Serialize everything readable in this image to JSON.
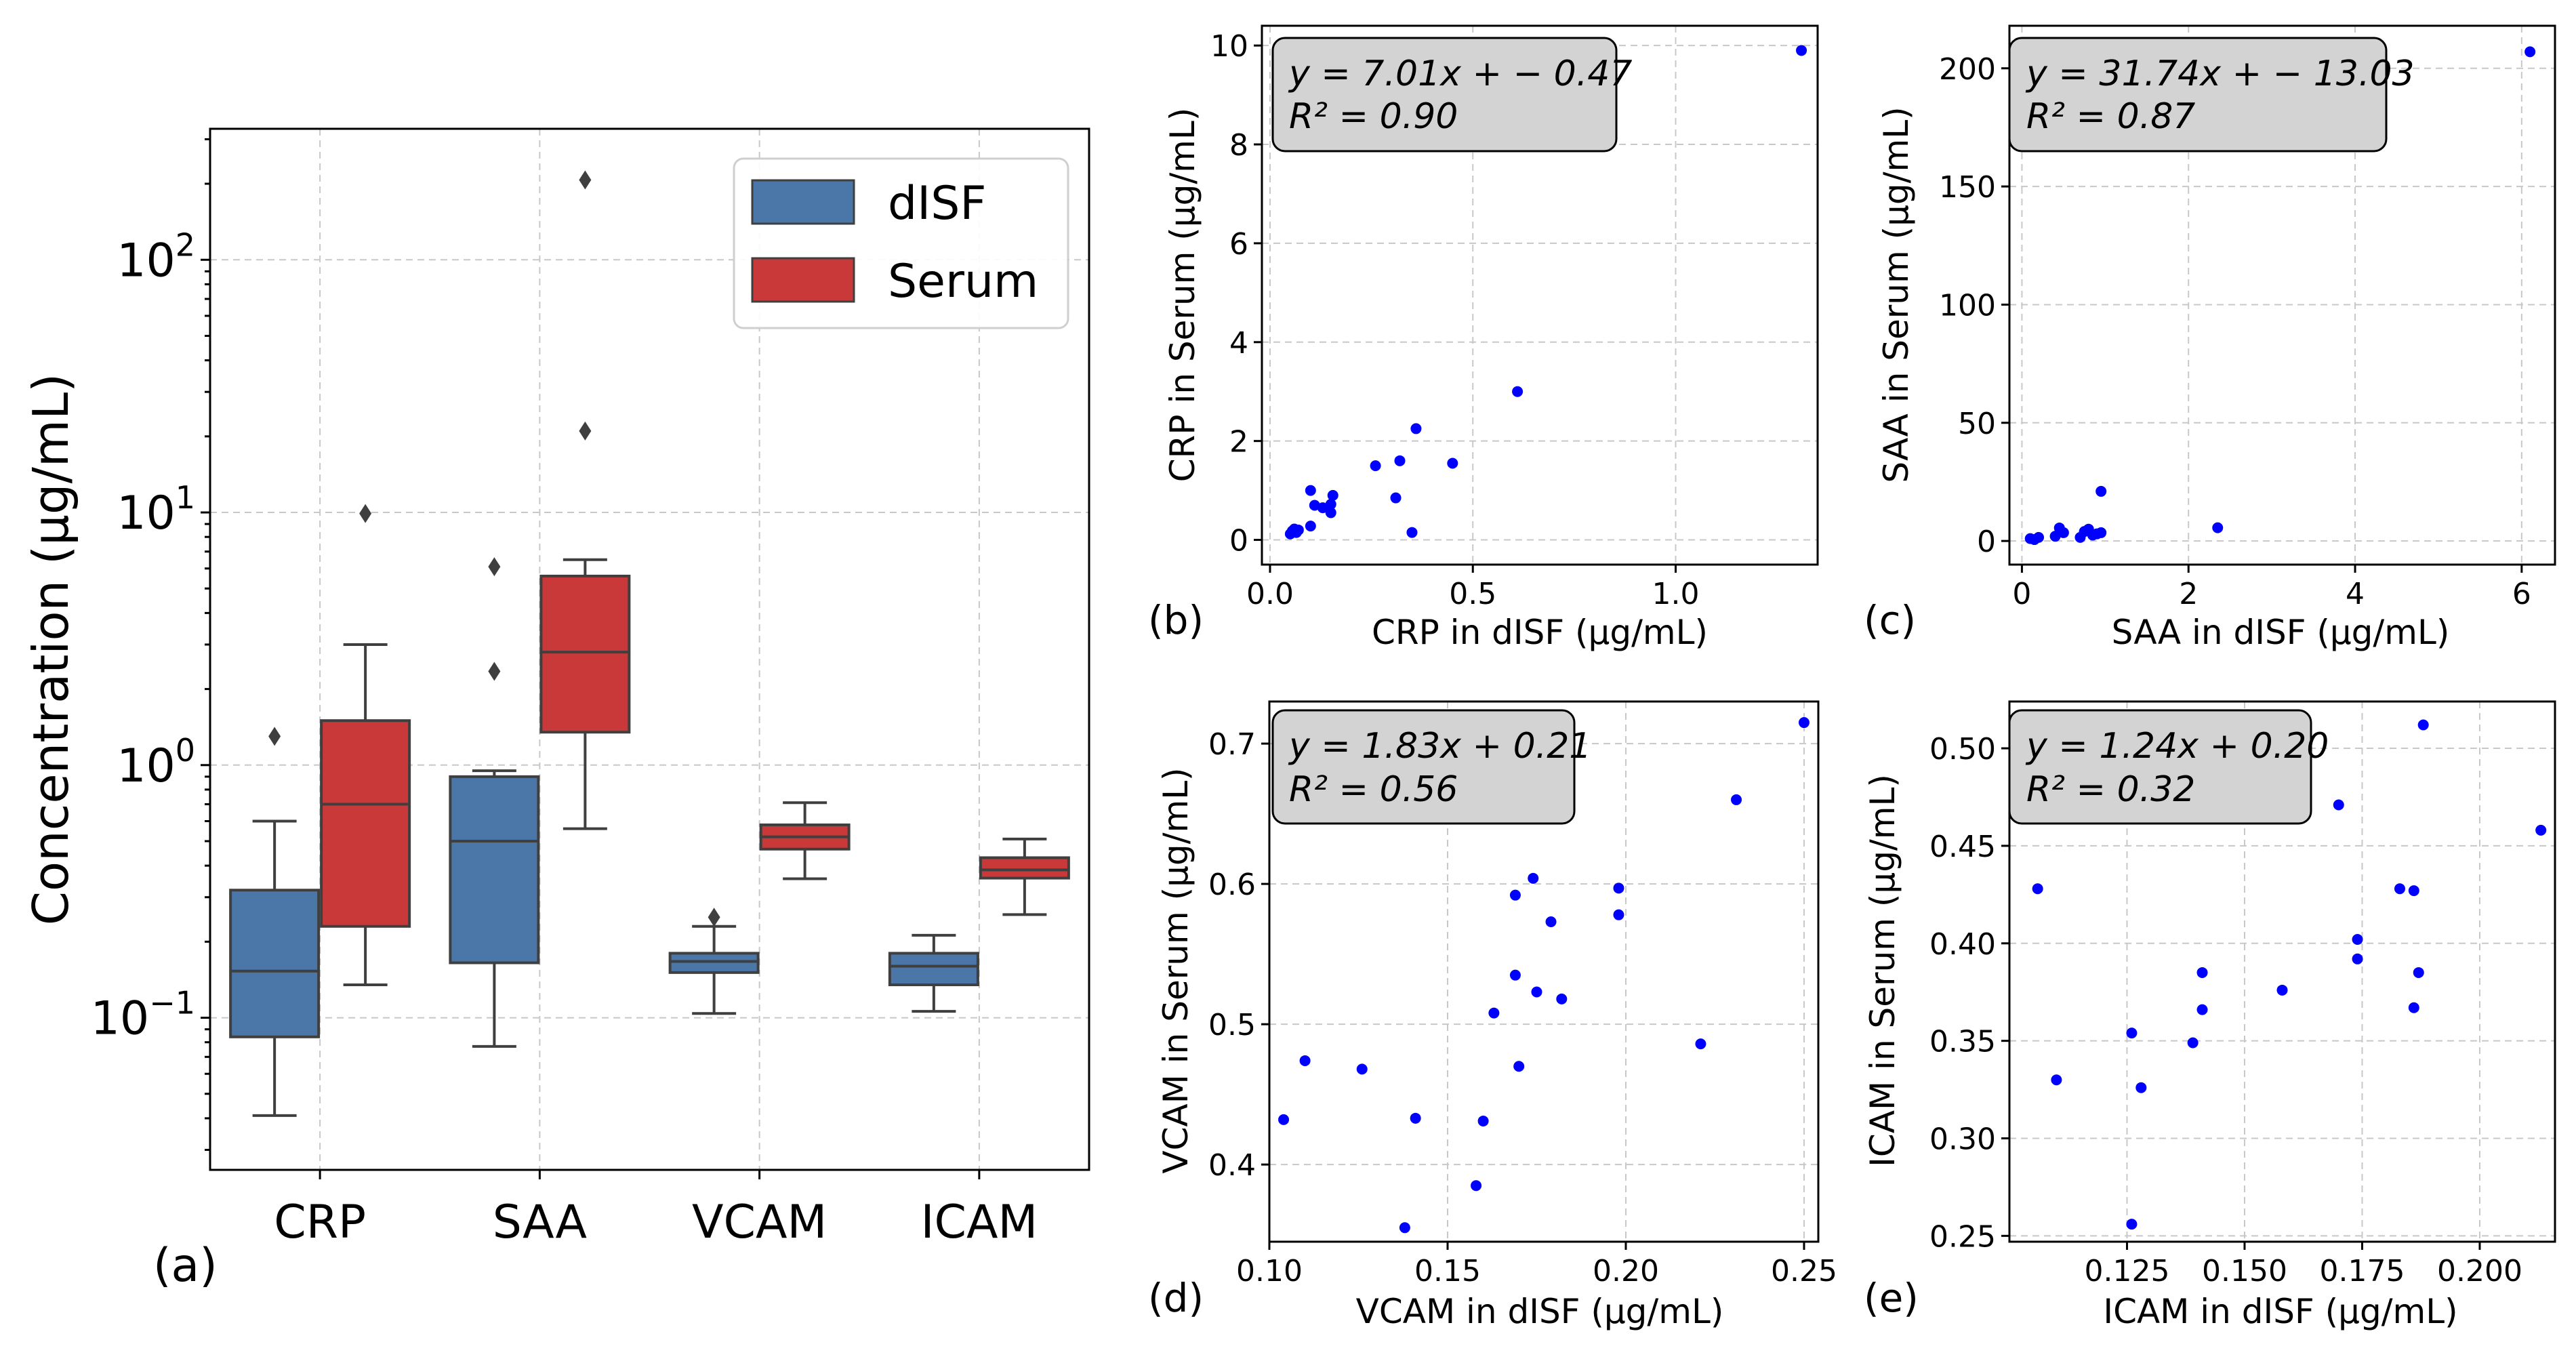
{
  "chart_data": [
    {
      "panel": "(a)",
      "type": "boxplot",
      "yscale": "log",
      "ylim": [
        0.025,
        330
      ],
      "ylabel": "Concentration (µg/mL)",
      "categories": [
        "CRP",
        "SAA",
        "VCAM",
        "ICAM"
      ],
      "yticks": [
        {
          "value": 0.1,
          "base": "10",
          "exp": "−1"
        },
        {
          "value": 1,
          "base": "10",
          "exp": "0"
        },
        {
          "value": 10,
          "base": "10",
          "exp": "1"
        },
        {
          "value": 100,
          "base": "10",
          "exp": "2"
        }
      ],
      "legend": {
        "position": "top-right",
        "entries": [
          {
            "name": "dISF",
            "color": "#4a77a8"
          },
          {
            "name": "Serum",
            "color": "#c9393a"
          }
        ]
      },
      "series": [
        {
          "name": "dISF",
          "color": "#4a77a8",
          "boxes": [
            {
              "category": "CRP",
              "whislo": 0.041,
              "q1": 0.084,
              "med": 0.153,
              "q3": 0.32,
              "whishi": 0.6,
              "fliers": [
                1.3
              ]
            },
            {
              "category": "SAA",
              "whislo": 0.077,
              "q1": 0.165,
              "med": 0.5,
              "q3": 0.9,
              "whishi": 0.95,
              "fliers": [
                2.35,
                6.1
              ]
            },
            {
              "category": "VCAM",
              "whislo": 0.104,
              "q1": 0.151,
              "med": 0.167,
              "q3": 0.18,
              "whishi": 0.23,
              "fliers": [
                0.25
              ]
            },
            {
              "category": "ICAM",
              "whislo": 0.106,
              "q1": 0.135,
              "med": 0.16,
              "q3": 0.18,
              "whishi": 0.212,
              "fliers": []
            }
          ]
        },
        {
          "name": "Serum",
          "color": "#c9393a",
          "boxes": [
            {
              "category": "CRP",
              "whislo": 0.135,
              "q1": 0.23,
              "med": 0.7,
              "q3": 1.5,
              "whishi": 3.0,
              "fliers": [
                9.9
              ]
            },
            {
              "category": "SAA",
              "whislo": 0.56,
              "q1": 1.35,
              "med": 2.8,
              "q3": 5.6,
              "whishi": 6.5,
              "fliers": [
                21.0,
                207.0
              ]
            },
            {
              "category": "VCAM",
              "whislo": 0.355,
              "q1": 0.465,
              "med": 0.52,
              "q3": 0.58,
              "whishi": 0.71,
              "fliers": []
            },
            {
              "category": "ICAM",
              "whislo": 0.256,
              "q1": 0.357,
              "med": 0.385,
              "q3": 0.43,
              "whishi": 0.51,
              "fliers": []
            }
          ]
        }
      ]
    },
    {
      "panel": "(b)",
      "type": "scatter",
      "xlabel": "CRP in dISF (µg/mL)",
      "ylabel": "CRP in Serum (µg/mL)",
      "xlim": [
        -0.02,
        1.35
      ],
      "ylim": [
        -0.5,
        10.4
      ],
      "xticks": [
        0.0,
        0.5,
        1.0
      ],
      "xticklabels": [
        "0.0",
        "0.5",
        "1.0"
      ],
      "yticks": [
        0,
        2,
        4,
        6,
        8,
        10
      ],
      "yticklabels": [
        "0",
        "2",
        "4",
        "6",
        "8",
        "10"
      ],
      "equation": "y = 7.01x + − 0.47",
      "r2": "R² = 0.90",
      "color": "#0000ff",
      "points": [
        [
          0.05,
          0.12
        ],
        [
          0.055,
          0.18
        ],
        [
          0.06,
          0.22
        ],
        [
          0.065,
          0.15
        ],
        [
          0.07,
          0.2
        ],
        [
          0.1,
          0.28
        ],
        [
          0.1,
          1.0
        ],
        [
          0.11,
          0.7
        ],
        [
          0.13,
          0.65
        ],
        [
          0.15,
          0.55
        ],
        [
          0.15,
          0.72
        ],
        [
          0.155,
          0.9
        ],
        [
          0.26,
          1.5
        ],
        [
          0.31,
          0.85
        ],
        [
          0.32,
          1.6
        ],
        [
          0.35,
          0.15
        ],
        [
          0.36,
          2.25
        ],
        [
          0.45,
          1.55
        ],
        [
          0.61,
          3.0
        ],
        [
          1.31,
          9.9
        ]
      ]
    },
    {
      "panel": "(c)",
      "type": "scatter",
      "xlabel": "SAA in dISF (µg/mL)",
      "ylabel": "SAA in Serum (µg/mL)",
      "xlim": [
        -0.15,
        6.4
      ],
      "ylim": [
        -10,
        218
      ],
      "xticks": [
        0,
        2,
        4,
        6
      ],
      "xticklabels": [
        "0",
        "2",
        "4",
        "6"
      ],
      "yticks": [
        0,
        50,
        100,
        150,
        200
      ],
      "yticklabels": [
        "0",
        "50",
        "100",
        "150",
        "200"
      ],
      "equation": "y = 31.74x + − 13.03",
      "r2": "R² = 0.87",
      "color": "#0000ff",
      "points": [
        [
          0.1,
          1.0
        ],
        [
          0.15,
          0.6
        ],
        [
          0.2,
          1.5
        ],
        [
          0.4,
          2.0
        ],
        [
          0.45,
          5.5
        ],
        [
          0.5,
          3.5
        ],
        [
          0.7,
          1.5
        ],
        [
          0.75,
          4.0
        ],
        [
          0.8,
          5.0
        ],
        [
          0.85,
          2.5
        ],
        [
          0.9,
          3.0
        ],
        [
          0.95,
          3.5
        ],
        [
          0.95,
          21.0
        ],
        [
          2.35,
          5.6
        ],
        [
          6.1,
          207.0
        ]
      ]
    },
    {
      "panel": "(d)",
      "type": "scatter",
      "xlabel": "VCAM in dISF (µg/mL)",
      "ylabel": "VCAM in Serum (µg/mL)",
      "xlim": [
        0.1,
        0.254
      ],
      "ylim": [
        0.345,
        0.73
      ],
      "xticks": [
        0.1,
        0.15,
        0.2,
        0.25
      ],
      "xticklabels": [
        "0.10",
        "0.15",
        "0.20",
        "0.25"
      ],
      "yticks": [
        0.4,
        0.5,
        0.6,
        0.7
      ],
      "yticklabels": [
        "0.4",
        "0.5",
        "0.6",
        "0.7"
      ],
      "equation": "y = 1.83x + 0.21",
      "r2": "R² = 0.56",
      "color": "#0000ff",
      "points": [
        [
          0.104,
          0.432
        ],
        [
          0.11,
          0.474
        ],
        [
          0.126,
          0.468
        ],
        [
          0.138,
          0.355
        ],
        [
          0.141,
          0.433
        ],
        [
          0.158,
          0.385
        ],
        [
          0.16,
          0.431
        ],
        [
          0.163,
          0.508
        ],
        [
          0.169,
          0.592
        ],
        [
          0.169,
          0.535
        ],
        [
          0.17,
          0.47
        ],
        [
          0.174,
          0.604
        ],
        [
          0.175,
          0.523
        ],
        [
          0.179,
          0.573
        ],
        [
          0.182,
          0.518
        ],
        [
          0.198,
          0.597
        ],
        [
          0.198,
          0.578
        ],
        [
          0.221,
          0.486
        ],
        [
          0.231,
          0.66
        ],
        [
          0.25,
          0.715
        ]
      ]
    },
    {
      "panel": "(e)",
      "type": "scatter",
      "xlabel": "ICAM in dISF (µg/mL)",
      "ylabel": "ICAM in Serum (µg/mL)",
      "xlim": [
        0.1,
        0.216
      ],
      "ylim": [
        0.247,
        0.524
      ],
      "xticks": [
        0.125,
        0.15,
        0.175,
        0.2
      ],
      "xticklabels": [
        "0.125",
        "0.150",
        "0.175",
        "0.200"
      ],
      "yticks": [
        0.25,
        0.3,
        0.35,
        0.4,
        0.45,
        0.5
      ],
      "yticklabels": [
        "0.25",
        "0.30",
        "0.35",
        "0.40",
        "0.45",
        "0.50"
      ],
      "equation": "y = 1.24x + 0.20",
      "r2": "R² = 0.32",
      "color": "#0000ff",
      "points": [
        [
          0.106,
          0.428
        ],
        [
          0.11,
          0.33
        ],
        [
          0.126,
          0.354
        ],
        [
          0.126,
          0.256
        ],
        [
          0.128,
          0.326
        ],
        [
          0.139,
          0.349
        ],
        [
          0.141,
          0.385
        ],
        [
          0.141,
          0.366
        ],
        [
          0.158,
          0.376
        ],
        [
          0.17,
          0.471
        ],
        [
          0.174,
          0.402
        ],
        [
          0.174,
          0.392
        ],
        [
          0.183,
          0.428
        ],
        [
          0.186,
          0.427
        ],
        [
          0.186,
          0.367
        ],
        [
          0.187,
          0.385
        ],
        [
          0.188,
          0.512
        ],
        [
          0.213,
          0.458
        ]
      ]
    }
  ]
}
